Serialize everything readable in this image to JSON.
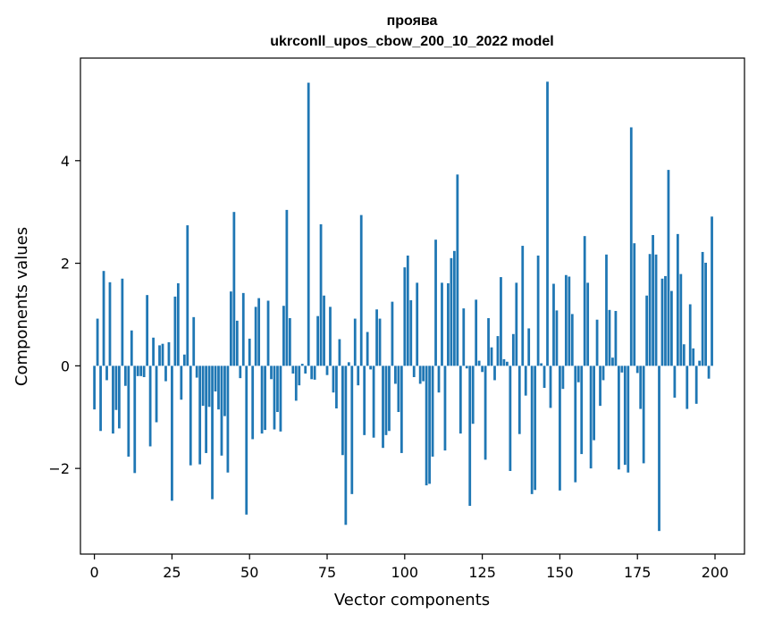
{
  "chart_data": {
    "type": "bar",
    "title": "проява",
    "subtitle": "ukrconll_upos_cbow_200_10_2022 model",
    "xlabel": "Vector components",
    "ylabel": "Components values",
    "xlim": [
      -4.5,
      209.5
    ],
    "ylim": [
      -3.67,
      6.0
    ],
    "xticks": [
      0,
      25,
      50,
      75,
      100,
      125,
      150,
      175,
      200
    ],
    "yticks": [
      -2,
      0,
      2,
      4
    ],
    "ytick_labels": [
      "−2",
      "0",
      "2",
      "4"
    ],
    "grid": false,
    "legend": "none",
    "bar_color": "#1f77b4",
    "x": [
      0,
      1,
      2,
      3,
      4,
      5,
      6,
      7,
      8,
      9,
      10,
      11,
      12,
      13,
      14,
      15,
      16,
      17,
      18,
      19,
      20,
      21,
      22,
      23,
      24,
      25,
      26,
      27,
      28,
      29,
      30,
      31,
      32,
      33,
      34,
      35,
      36,
      37,
      38,
      39,
      40,
      41,
      42,
      43,
      44,
      45,
      46,
      47,
      48,
      49,
      50,
      51,
      52,
      53,
      54,
      55,
      56,
      57,
      58,
      59,
      60,
      61,
      62,
      63,
      64,
      65,
      66,
      67,
      68,
      69,
      70,
      71,
      72,
      73,
      74,
      75,
      76,
      77,
      78,
      79,
      80,
      81,
      82,
      83,
      84,
      85,
      86,
      87,
      88,
      89,
      90,
      91,
      92,
      93,
      94,
      95,
      96,
      97,
      98,
      99,
      100,
      101,
      102,
      103,
      104,
      105,
      106,
      107,
      108,
      109,
      110,
      111,
      112,
      113,
      114,
      115,
      116,
      117,
      118,
      119,
      120,
      121,
      122,
      123,
      124,
      125,
      126,
      127,
      128,
      129,
      130,
      131,
      132,
      133,
      134,
      135,
      136,
      137,
      138,
      139,
      140,
      141,
      142,
      143,
      144,
      145,
      146,
      147,
      148,
      149,
      150,
      151,
      152,
      153,
      154,
      155,
      156,
      157,
      158,
      159,
      160,
      161,
      162,
      163,
      164,
      165,
      166,
      167,
      168,
      169,
      170,
      171,
      172,
      173,
      174,
      175,
      176,
      177,
      178,
      179,
      180,
      181,
      182,
      183,
      184,
      185,
      186,
      187,
      188,
      189,
      190,
      191,
      192,
      193,
      194,
      195,
      196,
      197,
      198,
      199
    ],
    "values": [
      -0.85,
      0.92,
      -1.27,
      1.85,
      -0.28,
      1.63,
      -1.32,
      -0.86,
      -1.22,
      1.7,
      -0.39,
      -1.77,
      0.69,
      -2.09,
      -0.2,
      -0.2,
      -0.22,
      1.38,
      -1.57,
      0.55,
      -1.1,
      0.4,
      0.43,
      -0.3,
      0.46,
      -2.63,
      1.35,
      1.61,
      -0.66,
      0.22,
      2.74,
      -1.94,
      0.95,
      -0.23,
      -1.92,
      -0.78,
      -1.7,
      -0.8,
      -2.6,
      -0.5,
      -0.85,
      -1.75,
      -0.98,
      -2.08,
      1.45,
      3.0,
      0.88,
      -0.24,
      1.42,
      -2.9,
      0.53,
      -1.43,
      1.15,
      1.32,
      -1.32,
      -1.25,
      1.27,
      -0.26,
      -1.24,
      -0.9,
      -1.28,
      1.17,
      3.04,
      0.93,
      -0.15,
      -0.68,
      -0.38,
      0.04,
      -0.15,
      5.52,
      -0.26,
      -0.27,
      0.97,
      2.76,
      1.37,
      -0.18,
      1.15,
      -0.52,
      -0.83,
      0.52,
      -1.74,
      -3.1,
      0.07,
      -2.5,
      0.92,
      -0.38,
      2.94,
      -1.35,
      0.66,
      -0.07,
      -1.4,
      1.1,
      0.92,
      -1.6,
      -1.35,
      -1.27,
      1.25,
      -0.35,
      -0.9,
      -1.7,
      1.92,
      2.15,
      1.28,
      -0.22,
      1.62,
      -0.35,
      -0.3,
      -2.33,
      -2.3,
      -1.77,
      2.46,
      -0.52,
      1.62,
      -1.65,
      1.61,
      2.1,
      2.24,
      3.73,
      -1.32,
      1.12,
      -0.05,
      -2.73,
      -1.13,
      1.29,
      0.1,
      -0.12,
      -1.83,
      0.93,
      0.36,
      -0.28,
      0.58,
      1.73,
      0.13,
      0.08,
      -2.05,
      0.62,
      1.62,
      -1.33,
      2.34,
      -0.58,
      0.73,
      -2.5,
      -2.42,
      2.15,
      0.05,
      -0.43,
      5.54,
      -0.82,
      1.6,
      1.08,
      -2.43,
      -0.45,
      1.77,
      1.74,
      1.01,
      -2.27,
      -0.32,
      -1.72,
      2.53,
      1.62,
      -2.0,
      -1.45,
      0.9,
      -0.78,
      -0.28,
      2.17,
      1.09,
      0.16,
      1.07,
      -2.02,
      -0.13,
      -1.93,
      -2.08,
      4.65,
      2.39,
      -0.14,
      -0.84,
      -1.9,
      1.37,
      2.18,
      2.55,
      2.17,
      -3.22,
      1.7,
      1.75,
      3.82,
      1.46,
      -0.62,
      2.57,
      1.79,
      0.42,
      -0.84,
      1.2,
      0.34,
      -0.74,
      0.1,
      2.22,
      2.01,
      -0.25,
      2.91
    ]
  }
}
